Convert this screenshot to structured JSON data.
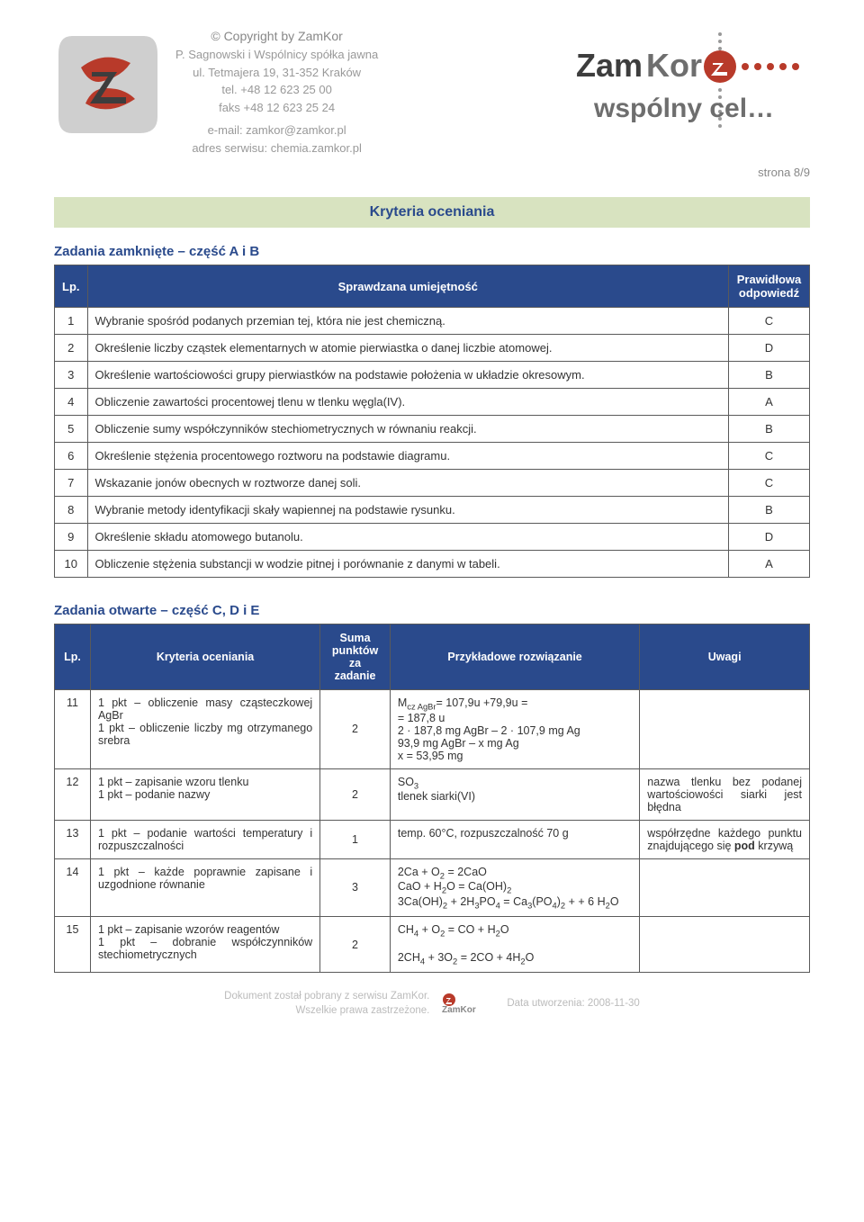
{
  "header": {
    "copyright": "© Copyright by ZamKor",
    "company": "P. Sagnowski i Wspólnicy spółka jawna",
    "address": "ul. Tetmajera 19, 31-352 Kraków",
    "tel": "tel. +48 12 623 25 00",
    "fax": "faks +48 12 623 25 24",
    "email": "e-mail: zamkor@zamkor.pl",
    "site": "adres serwisu: chemia.zamkor.pl",
    "logo_gray_color": "#cfcfcf",
    "logo_red_color": "#b83a2a",
    "logo_dark_color": "#3d3d3d",
    "brand_line1": "ZamKor",
    "brand_line2": "wspólny cel…",
    "circle_color": "#b83a2a",
    "dot_color": "#999999"
  },
  "page_label": "strona 8/9",
  "section_title": "Kryteria oceniania",
  "section1": {
    "title": "Zadania zamknięte – część A i B",
    "columns": {
      "lp": "Lp.",
      "skill": "Sprawdzana umiejętność",
      "answer": "Prawidłowa odpowiedź"
    },
    "rows": [
      {
        "n": "1",
        "skill": "Wybranie spośród podanych przemian tej, która nie jest chemiczną.",
        "ans": "C"
      },
      {
        "n": "2",
        "skill": "Określenie liczby cząstek elementarnych w atomie pierwiastka o danej liczbie atomowej.",
        "ans": "D"
      },
      {
        "n": "3",
        "skill": "Określenie wartościowości grupy pierwiastków na podstawie położenia w układzie okresowym.",
        "ans": "B"
      },
      {
        "n": "4",
        "skill": "Obliczenie zawartości procentowej tlenu w tlenku węgla(IV).",
        "ans": "A"
      },
      {
        "n": "5",
        "skill": "Obliczenie sumy współczynników stechiometrycznych w równaniu reakcji.",
        "ans": "B"
      },
      {
        "n": "6",
        "skill": "Określenie stężenia procentowego roztworu na podstawie diagramu.",
        "ans": "C"
      },
      {
        "n": "7",
        "skill": "Wskazanie jonów obecnych w roztworze danej soli.",
        "ans": "C"
      },
      {
        "n": "8",
        "skill": "Wybranie metody identyfikacji skały wapiennej na podstawie rysunku.",
        "ans": "B"
      },
      {
        "n": "9",
        "skill": "Określenie składu atomowego butanolu.",
        "ans": "D"
      },
      {
        "n": "10",
        "skill": "Obliczenie stężenia substancji w wodzie pitnej i porównanie z danymi w tabeli.",
        "ans": "A"
      }
    ]
  },
  "section2": {
    "title": "Zadania otwarte – część C, D i E",
    "columns": {
      "lp": "Lp.",
      "criteria": "Kryteria oceniania",
      "sum": "Suma punktów za zadanie",
      "example": "Przykładowe rozwiązanie",
      "notes": "Uwagi"
    },
    "rows": [
      {
        "n": "11",
        "criteria": "1 pkt – obliczenie masy cząsteczkowej AgBr\n1 pkt – obliczenie liczby mg otrzymanego srebra",
        "pts": "2",
        "example": "M_{cz AgBr}= 107,9u +79,9u =\n= 187,8 u\n2 · 187,8 mg AgBr – 2 · 107,9 mg Ag\n93,9 mg AgBr – x mg Ag\nx = 53,95 mg",
        "notes": ""
      },
      {
        "n": "12",
        "criteria": "1 pkt – zapisanie wzoru tlenku\n1 pkt – podanie nazwy",
        "pts": "2",
        "example": "SO_3\ntlenek siarki(VI)",
        "notes": "nazwa tlenku bez podanej wartościowości siarki jest błędna"
      },
      {
        "n": "13",
        "criteria": "1 pkt – podanie wartości temperatury i rozpuszczalności",
        "pts": "1",
        "example": "temp. 60°C, rozpuszczalność 70 g",
        "notes": "współrzędne każdego punktu znajdującego się **pod** krzywą"
      },
      {
        "n": "14",
        "criteria": "1 pkt – każde poprawnie zapisane i uzgodnione równanie",
        "pts": "3",
        "example": "2Ca + O_2 = 2CaO\nCaO + H_2O = Ca(OH)_2\n3Ca(OH)_2 + 2H_3PO_4 = Ca_3(PO_4)_2 + + 6 H_2O",
        "notes": ""
      },
      {
        "n": "15",
        "criteria": "1 pkt – zapisanie wzorów reagentów\n1 pkt – dobranie współczynników stechiometrycznych",
        "pts": "2",
        "example": "CH_4 + O_2 = CO + H_2O\n\n2CH_4 + 3O_2 = 2CO + 4H_2O",
        "notes": ""
      }
    ]
  },
  "footer": {
    "line1": "Dokument został pobrany z serwisu ZamKor.",
    "line2": "Wszelkie prawa zastrzeżone.",
    "brand": "ZamKor",
    "date": "Data utworzenia: 2008-11-30"
  },
  "colors": {
    "heading_bar_bg": "#d8e3c0",
    "heading_text": "#2a4a8c",
    "th_bg": "#2a4a8c",
    "th_text": "#ffffff",
    "border": "#5a5a5a",
    "footer_text": "#bbbbbb"
  }
}
